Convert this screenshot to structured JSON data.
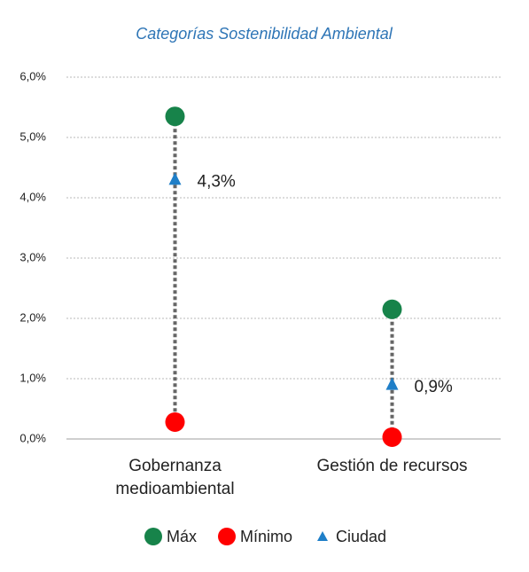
{
  "chart_data": {
    "type": "dot-range",
    "title": "Categorías Sostenibilidad Ambiental",
    "categories": [
      "Gobernanza medioambiental",
      "Gestión de recursos"
    ],
    "series": [
      {
        "name": "Máx",
        "color": "#17834a",
        "marker": "circle",
        "values": [
          5.35,
          2.15
        ]
      },
      {
        "name": "Mínimo",
        "color": "#ff0000",
        "marker": "circle",
        "values": [
          0.28,
          0.03
        ]
      },
      {
        "name": "Ciudad",
        "color": "#1f7fc8",
        "marker": "triangle",
        "values": [
          4.3,
          0.9
        ],
        "value_labels": [
          "4,3%",
          "0,9%"
        ]
      }
    ],
    "ylim": [
      0,
      6
    ],
    "yticks": [
      {
        "value": 0,
        "label": "0,0%"
      },
      {
        "value": 1,
        "label": "1,0%"
      },
      {
        "value": 2,
        "label": "2,0%"
      },
      {
        "value": 3,
        "label": "3,0%"
      },
      {
        "value": 4,
        "label": "4,0%"
      },
      {
        "value": 5,
        "label": "5,0%"
      },
      {
        "value": 6,
        "label": "6,0%"
      }
    ],
    "grid": true,
    "legend": "bottom"
  }
}
